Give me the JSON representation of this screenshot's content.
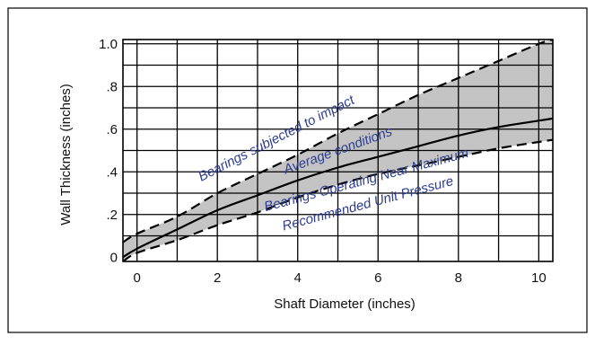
{
  "chart_data": {
    "type": "line",
    "title": "",
    "xlabel": "Shaft Diameter (inches)",
    "ylabel": "Wall Thickness (inches)",
    "xlim": [
      -0.35,
      10.35
    ],
    "ylim": [
      -0.02,
      1.02
    ],
    "x_ticks": [
      {
        "value": 0,
        "label": "0"
      },
      {
        "value": 2,
        "label": "2"
      },
      {
        "value": 4,
        "label": "4"
      },
      {
        "value": 6,
        "label": "6"
      },
      {
        "value": 8,
        "label": "8"
      },
      {
        "value": 10,
        "label": "10"
      }
    ],
    "y_ticks": [
      {
        "value": 0,
        "label": "0"
      },
      {
        "value": 0.2,
        "label": ".2"
      },
      {
        "value": 0.4,
        "label": ".4"
      },
      {
        "value": 0.6,
        "label": ".6"
      },
      {
        "value": 0.8,
        "label": ".8"
      },
      {
        "value": 1.0,
        "label": "1.0"
      }
    ],
    "grid": true,
    "x_grid": [
      0,
      1,
      2,
      3,
      4,
      5,
      6,
      7,
      8,
      9,
      10
    ],
    "y_grid": [
      0.1,
      0.2,
      0.3,
      0.4,
      0.5,
      0.6,
      0.7,
      0.8,
      0.9,
      1.0
    ],
    "band_color": "#c4c4c4",
    "annotation_color": "#2c3d8f",
    "series": [
      {
        "name": "Bearings subjected to impact",
        "style": "dashed",
        "x": [
          -0.35,
          0,
          1,
          2,
          3,
          4,
          5,
          6,
          7,
          8,
          9,
          10,
          10.35
        ],
        "y": [
          0.07,
          0.11,
          0.19,
          0.3,
          0.39,
          0.48,
          0.58,
          0.67,
          0.76,
          0.84,
          0.92,
          1.0,
          1.02
        ]
      },
      {
        "name": "Average conditions",
        "style": "solid",
        "x": [
          -0.35,
          0,
          1,
          2,
          3,
          4,
          5,
          6,
          7,
          8,
          9,
          10,
          10.35
        ],
        "y": [
          0.0,
          0.04,
          0.13,
          0.22,
          0.29,
          0.36,
          0.42,
          0.47,
          0.52,
          0.57,
          0.61,
          0.64,
          0.65
        ]
      },
      {
        "name": "Bearings Operating Near Maximum Recommended Unit Pressure",
        "style": "dashed",
        "x": [
          -0.35,
          0,
          1,
          2,
          3,
          4,
          5,
          6,
          7,
          8,
          9,
          10,
          10.35
        ],
        "y": [
          -0.02,
          0.02,
          0.08,
          0.15,
          0.21,
          0.28,
          0.34,
          0.39,
          0.43,
          0.47,
          0.51,
          0.54,
          0.55
        ]
      }
    ],
    "annotations": [
      {
        "text": "Bearings subjected to impact",
        "x": 1.6,
        "y": 0.355,
        "angle": -27
      },
      {
        "text": "Average conditions",
        "x": 3.7,
        "y": 0.39,
        "angle": -20
      },
      {
        "text": "Bearings Operating Near Maximum",
        "x": 3.2,
        "y": 0.215,
        "angle": -15
      },
      {
        "text": "Recommended Unit Pressure",
        "x": 3.65,
        "y": 0.125,
        "angle": -15
      }
    ]
  }
}
